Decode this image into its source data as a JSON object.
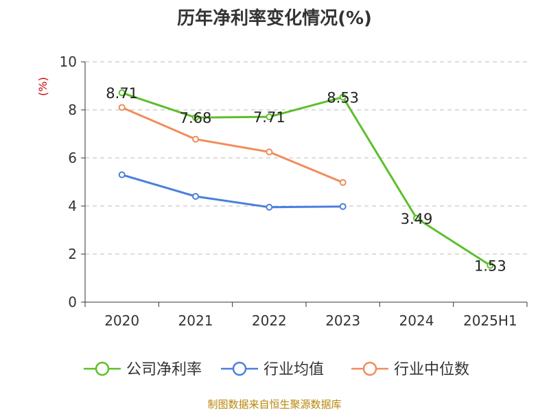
{
  "title": "历年净利率变化情况(%)",
  "source": "制图数据来自恒生聚源数据库",
  "chart_data": {
    "type": "line",
    "title": "历年净利率变化情况(%)",
    "ylabel": "(%)",
    "xlabel": "",
    "categories": [
      "2020",
      "2021",
      "2022",
      "2023",
      "2024",
      "2025H1"
    ],
    "ylim": [
      0,
      10
    ],
    "yticks": [
      0,
      2,
      4,
      6,
      8,
      10
    ],
    "grid": "horizontal-dashed",
    "legend_position": "bottom",
    "series": [
      {
        "name": "公司净利率",
        "color": "#5cbf2a",
        "values": [
          8.71,
          7.68,
          7.71,
          8.53,
          3.49,
          1.53
        ],
        "data_labels": true,
        "labels": [
          "8.71",
          "7.68",
          "7.71",
          "8.53",
          "3.49",
          "1.53"
        ]
      },
      {
        "name": "行业均值",
        "color": "#4a7fdc",
        "values": [
          5.3,
          4.4,
          3.95,
          3.98,
          null,
          null
        ],
        "data_labels": false
      },
      {
        "name": "行业中位数",
        "color": "#f08c5a",
        "values": [
          8.1,
          6.78,
          6.25,
          4.98,
          null,
          null
        ],
        "data_labels": false
      }
    ]
  }
}
